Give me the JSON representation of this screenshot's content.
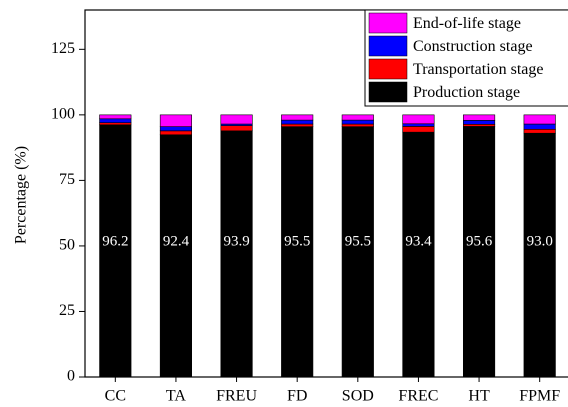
{
  "chart_data": {
    "type": "stacked_bar",
    "y_label": "Percentage (%)",
    "categories": [
      "CC",
      "TA",
      "FREU",
      "FD",
      "SOD",
      "FREC",
      "HT",
      "FPMF"
    ],
    "series": [
      {
        "name": "Production stage",
        "color": "#000000",
        "values": [
          96.2,
          92.4,
          93.9,
          95.5,
          95.5,
          93.4,
          95.6,
          93.0
        ],
        "value_labels": [
          "96.2",
          "92.4",
          "93.9",
          "95.5",
          "95.5",
          "93.4",
          "95.6",
          "93.0"
        ]
      },
      {
        "name": "Transportation stage",
        "color": "#ff0000",
        "values": [
          0.8,
          1.5,
          2.0,
          1.0,
          1.0,
          2.2,
          0.8,
          1.5
        ]
      },
      {
        "name": "Construction stage",
        "color": "#0000ff",
        "values": [
          1.5,
          1.6,
          0.6,
          1.5,
          1.5,
          1.0,
          1.5,
          2.0
        ]
      },
      {
        "name": "End-of-life stage",
        "color": "#ff00ff",
        "values": [
          1.5,
          4.5,
          3.5,
          2.0,
          2.0,
          3.4,
          2.1,
          3.5
        ]
      }
    ],
    "ylim": [
      0,
      140
    ],
    "yticks": [
      0,
      25,
      50,
      75,
      100,
      125
    ],
    "legend": "top-right"
  }
}
